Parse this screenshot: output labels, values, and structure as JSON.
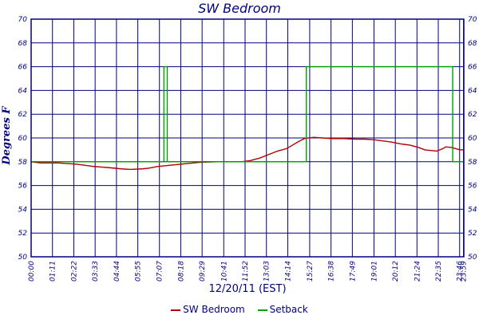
{
  "chart_data": {
    "type": "line",
    "title": "SW Bedroom",
    "xlabel": "12/20/11 (EST)",
    "ylabel": "Degrees F",
    "ylim": [
      50,
      70
    ],
    "xlim_minutes": [
      0,
      1440
    ],
    "y_ticks": [
      "50",
      "52",
      "54",
      "56",
      "58",
      "60",
      "62",
      "64",
      "66",
      "68",
      "70"
    ],
    "x_ticks": [
      {
        "label": "00:00",
        "minute": 0
      },
      {
        "label": "01:11",
        "minute": 71
      },
      {
        "label": "02:22",
        "minute": 142
      },
      {
        "label": "03:33",
        "minute": 213
      },
      {
        "label": "04:44",
        "minute": 284
      },
      {
        "label": "05:55",
        "minute": 355
      },
      {
        "label": "07:07",
        "minute": 427
      },
      {
        "label": "08:18",
        "minute": 498
      },
      {
        "label": "09:29",
        "minute": 569
      },
      {
        "label": "10:41",
        "minute": 641
      },
      {
        "label": "11:52",
        "minute": 712
      },
      {
        "label": "13:03",
        "minute": 783
      },
      {
        "label": "14:14",
        "minute": 854
      },
      {
        "label": "15:27",
        "minute": 927
      },
      {
        "label": "16:38",
        "minute": 998
      },
      {
        "label": "17:49",
        "minute": 1069
      },
      {
        "label": "19:01",
        "minute": 1141
      },
      {
        "label": "20:12",
        "minute": 1212
      },
      {
        "label": "21:24",
        "minute": 1284
      },
      {
        "label": "22:35",
        "minute": 1355
      },
      {
        "label": "23:46",
        "minute": 1426
      },
      {
        "label": "23:59",
        "minute": 1439
      }
    ],
    "grid": true,
    "legend_position": "bottom",
    "series": [
      {
        "name": "SW Bedroom",
        "color": "#b00000",
        "x": [
          0,
          30,
          90,
          150,
          210,
          260,
          300,
          330,
          370,
          390,
          420,
          460,
          500,
          560,
          620,
          700,
          730,
          760,
          790,
          820,
          850,
          870,
          890,
          910,
          940,
          970,
          1000,
          1040,
          1080,
          1110,
          1140,
          1170,
          1200,
          1230,
          1260,
          1290,
          1310,
          1330,
          1350,
          1370,
          1380,
          1400,
          1420,
          1430,
          1440
        ],
        "y": [
          58.0,
          57.9,
          57.9,
          57.8,
          57.6,
          57.5,
          57.4,
          57.35,
          57.4,
          57.45,
          57.6,
          57.7,
          57.8,
          57.95,
          58.0,
          58.0,
          58.1,
          58.3,
          58.6,
          58.9,
          59.1,
          59.4,
          59.7,
          59.95,
          60.05,
          60.0,
          59.95,
          59.95,
          59.9,
          59.9,
          59.85,
          59.75,
          59.65,
          59.5,
          59.4,
          59.2,
          59.0,
          58.95,
          58.9,
          59.1,
          59.25,
          59.2,
          59.05,
          59.0,
          59.0
        ]
      },
      {
        "name": "Setback",
        "color": "#00a000",
        "x": [
          0,
          442,
          442,
          453,
          453,
          916,
          916,
          1403,
          1403,
          1440
        ],
        "y": [
          58,
          58,
          66,
          66,
          58,
          58,
          66,
          66,
          58,
          58
        ]
      }
    ]
  }
}
